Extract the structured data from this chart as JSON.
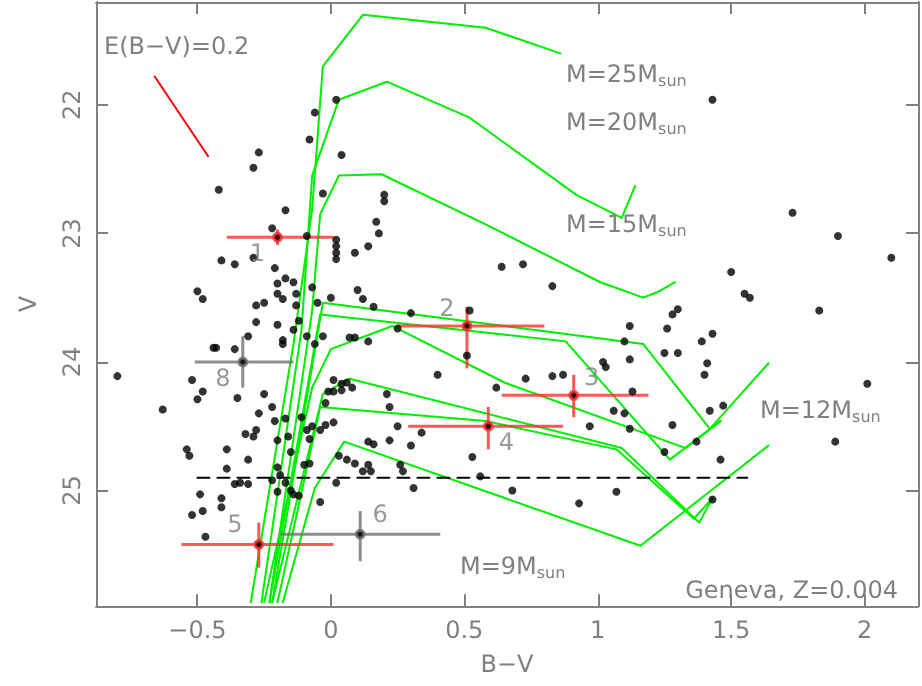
{
  "chart_data": {
    "type": "scatter",
    "xlabel": "B−V",
    "ylabel": "V",
    "xlim": [
      -0.88,
      2.2
    ],
    "ylim": [
      25.9,
      21.2
    ],
    "xticks": [
      {
        "value": -0.5,
        "label": "−0.5"
      },
      0,
      0.5,
      1,
      1.5,
      2
    ],
    "yticks": [
      22,
      23,
      24,
      25
    ],
    "grid": false,
    "marker": "circle",
    "series": [
      {
        "type": "scatter",
        "color": "#000000",
        "x": [
          0.02,
          -0.06,
          -0.08,
          0.04,
          -0.27,
          -0.29,
          -0.42,
          -0.03,
          0.2,
          0.2,
          0.17,
          0.18,
          -0.17,
          -0.22,
          -0.09,
          0.02,
          0.02,
          0.02,
          0.02,
          0.09,
          0.14,
          -0.41,
          -0.36,
          -0.29,
          -0.21,
          -0.17,
          -0.14,
          -0.5,
          -0.48,
          -0.2,
          -0.2,
          -0.07,
          0.1,
          0.12,
          0.16,
          0,
          -0.13,
          -0.28,
          -0.25,
          -0.18,
          -0.13,
          -0.05,
          -0.28,
          -0.2,
          -0.12,
          -0.31,
          -0.18,
          0.07,
          0.09,
          0.3,
          0.52,
          1.43,
          1.73,
          1.9,
          2.1,
          0.64,
          0.72,
          0.83,
          1.5,
          1.55,
          1.57,
          1.3,
          1.28,
          1.26,
          1.12,
          1.83,
          1.43,
          1.39,
          1.1,
          -0.8,
          -0.63,
          -0.52,
          -0.5,
          -0.48,
          -0.44,
          -0.43,
          -0.36,
          -0.35,
          -0.54,
          -0.53,
          -0.39,
          -0.39,
          -0.49,
          -0.52,
          -0.48,
          -0.47,
          -0.41,
          -0.41,
          -0.36,
          -0.34,
          -0.31,
          -0.32,
          -0.31,
          -0.25,
          -0.27,
          -0.28,
          -0.29,
          -0.22,
          -0.21,
          -0.2,
          -0.2,
          -0.19,
          -0.22,
          -0.2,
          -0.15,
          -0.14,
          -0.12,
          -0.17,
          -0.1,
          -0.08,
          -0.17,
          -0.16,
          -0.15,
          -0.11,
          -0.09,
          -0.08,
          -0.07,
          -0.04,
          -0.02,
          0.01,
          -0.02,
          -0.01,
          0.01,
          0.04,
          0.01,
          0.04,
          0.06,
          0.08,
          0.03,
          0.06,
          0.09,
          0.12,
          0.02,
          -0.04,
          0.14,
          0.16,
          0.14,
          0.15,
          0.21,
          0.22,
          0.22,
          0.25,
          0.26,
          0.27,
          0.3,
          0.31,
          0.4,
          0.34,
          -0.18,
          -0.14,
          -0.09,
          -0.06,
          -0.03,
          0.14,
          0.25,
          0.51,
          0.53,
          0.56,
          0.68,
          0.62,
          0.73,
          0.83,
          0.87,
          0.93,
          1.07,
          0.97,
          1.06,
          1.1,
          1.12,
          1.13,
          1.02,
          1.03,
          1.12,
          1.25,
          1.3,
          1.41,
          1.4,
          1.42,
          1.47,
          1.28,
          1.25,
          1.37,
          1.46,
          1.43,
          1.89,
          2.01
        ],
        "values": [
          21.96,
          22.06,
          22.27,
          22.39,
          22.37,
          22.49,
          22.66,
          22.69,
          22.7,
          22.75,
          22.91,
          23.0,
          22.82,
          22.96,
          23.02,
          23.05,
          23.1,
          23.15,
          23.2,
          23.15,
          23.1,
          23.21,
          23.24,
          23.19,
          23.27,
          23.35,
          23.38,
          23.45,
          23.51,
          23.39,
          23.47,
          23.42,
          23.44,
          23.51,
          23.57,
          23.5,
          23.47,
          23.56,
          23.54,
          23.51,
          23.56,
          23.54,
          23.69,
          23.71,
          23.68,
          23.8,
          23.83,
          23.81,
          23.81,
          23.62,
          23.6,
          21.96,
          22.84,
          23.02,
          23.19,
          23.26,
          23.24,
          23.41,
          23.3,
          23.47,
          23.5,
          23.59,
          23.63,
          23.74,
          23.72,
          23.6,
          23.78,
          23.84,
          23.84,
          24.11,
          24.37,
          24.14,
          24.29,
          24.23,
          23.89,
          23.89,
          23.9,
          24.28,
          24.68,
          24.73,
          24.68,
          24.83,
          25.03,
          25.19,
          25.16,
          25.36,
          25.06,
          25.13,
          24.95,
          24.94,
          24.95,
          24.56,
          24.76,
          24.25,
          24.4,
          24.53,
          24.58,
          24.35,
          24.46,
          24.61,
          24.82,
          24.88,
          24.92,
          25.01,
          25.0,
          25.03,
          25.04,
          24.94,
          24.8,
          24.79,
          24.44,
          24.58,
          24.7,
          24.43,
          24.53,
          24.6,
          24.5,
          24.53,
          24.49,
          24.47,
          24.32,
          24.23,
          24.23,
          24.22,
          24.14,
          24.17,
          24.16,
          24.2,
          24.73,
          24.76,
          24.79,
          24.85,
          24.94,
          25.09,
          24.62,
          24.64,
          24.8,
          24.85,
          24.25,
          24.35,
          24.61,
          24.5,
          24.8,
          24.85,
          24.65,
          24.98,
          24.1,
          24.55,
          23.86,
          23.75,
          23.8,
          23.86,
          23.8,
          23.84,
          23.74,
          23.95,
          24.74,
          24.89,
          25.0,
          24.2,
          24.13,
          24.11,
          24.1,
          25.1,
          25.01,
          24.5,
          24.38,
          24.4,
          24.52,
          24.23,
          24.0,
          24.04,
          23.98,
          23.93,
          23.93,
          24.01,
          24.1,
          24.38,
          24.34,
          24.49,
          24.7,
          24.62,
          24.76,
          25.07,
          24.62,
          24.17
        ]
      },
      {
        "type": "scatter",
        "color": "#ff3030",
        "x": [
          -0.2,
          0.51,
          0.91,
          0.59,
          -0.27
        ],
        "values": [
          23.03,
          23.72,
          24.26,
          24.5,
          25.42
        ],
        "xerrors": [
          [
            -0.39,
            0.01
          ],
          [
            0.25,
            0.8
          ],
          [
            0.64,
            1.19
          ],
          [
            0.29,
            0.87
          ],
          [
            -0.56,
            0.01
          ]
        ],
        "errors": [
          [
            22.97,
            23.09
          ],
          [
            23.57,
            24.05
          ],
          [
            24.1,
            24.43
          ],
          [
            24.35,
            24.68
          ],
          [
            25.25,
            25.6
          ]
        ]
      },
      {
        "type": "scatter",
        "color": "#707070",
        "x": [
          0.11,
          -0.33
        ],
        "values": [
          25.34,
          24.0
        ],
        "xerrors": [
          [
            -0.19,
            0.41
          ],
          [
            -0.51,
            -0.14
          ]
        ],
        "errors": [
          [
            25.16,
            25.55
          ],
          [
            23.8,
            24.2
          ]
        ]
      },
      {
        "type": "line",
        "marker": "none",
        "color": "#00ee00",
        "x": [
          -0.3,
          -0.14,
          -0.07,
          -0.03,
          0.12,
          0.58,
          0.86
        ],
        "values": [
          25.87,
          23.86,
          22.81,
          21.7,
          21.3,
          21.4,
          21.6
        ]
      },
      {
        "type": "line",
        "marker": "none",
        "color": "#00ee00",
        "x": [
          -0.26,
          -0.11,
          -0.07,
          0.03,
          0.21,
          0.52,
          0.92,
          1.09,
          1.11,
          1.14
        ],
        "values": [
          25.87,
          23.75,
          22.55,
          21.96,
          21.82,
          22.1,
          22.7,
          22.88,
          22.78,
          22.63
        ]
      },
      {
        "type": "line",
        "marker": "none",
        "color": "#00ee00",
        "x": [
          -0.23,
          -0.07,
          -0.04,
          0.03,
          0.19,
          0.58,
          1.01,
          1.17,
          1.22,
          1.29
        ],
        "values": [
          25.87,
          23.6,
          22.85,
          22.55,
          22.54,
          22.93,
          23.38,
          23.5,
          23.46,
          23.38
        ]
      },
      {
        "type": "line",
        "marker": "none",
        "color": "#00ee00",
        "x": [
          -0.22,
          -0.03,
          1.17,
          1.42,
          1.64
        ],
        "values": [
          25.87,
          23.54,
          23.86,
          24.52,
          24.01
        ]
      },
      {
        "type": "line",
        "marker": "none",
        "color": "#00ee00",
        "x": [
          -0.23,
          -0.04,
          0.88,
          1.27,
          1.46
        ],
        "values": [
          25.87,
          23.63,
          23.84,
          24.76,
          24.46
        ]
      },
      {
        "type": "line",
        "marker": "none",
        "color": "#00ee00",
        "x": [
          -0.25,
          -0.07,
          0,
          0.23,
          0.65,
          1.33,
          1.46
        ],
        "values": [
          25.87,
          24.2,
          23.9,
          23.72,
          24.16,
          24.67,
          24.46
        ]
      },
      {
        "type": "line",
        "marker": "none",
        "color": "#00ee00",
        "x": [
          -0.22,
          -0.03,
          0.07,
          1.09,
          1.38,
          1.43
        ],
        "values": [
          25.87,
          24.25,
          24.13,
          24.67,
          25.25,
          25.06
        ]
      },
      {
        "type": "line",
        "marker": "none",
        "color": "#00ee00",
        "x": [
          -0.2,
          -0.04,
          0.58,
          1.07,
          1.36,
          1.43
        ],
        "values": [
          25.87,
          24.35,
          24.46,
          24.68,
          25.22,
          25.06
        ]
      },
      {
        "type": "line",
        "marker": "none",
        "color": "#00ee00",
        "x": [
          -0.18,
          -0.06,
          0.05,
          1.16,
          1.64
        ],
        "values": [
          25.87,
          24.98,
          24.62,
          25.43,
          24.65
        ]
      },
      {
        "type": "line",
        "marker": "none",
        "color": "#ff0000",
        "x": [
          -0.66,
          -0.46
        ],
        "values": [
          21.78,
          22.4
        ]
      },
      {
        "type": "line",
        "marker": "none",
        "line_style": "dashed",
        "color": "#000000",
        "x": [
          -0.5,
          1.56
        ],
        "values": [
          24.9,
          24.9
        ]
      }
    ],
    "annotations": [
      "E(B−V)=0.2",
      "M=25M$_{sun}$",
      "M=20M$_{sun}$",
      "M=15M$_{sun}$",
      "M=12M$_{sun}$",
      "M=9M$_{sun}$",
      "Geneva, Z=0.004",
      {
        "text": "1",
        "x": -0.2,
        "y": 23.03
      },
      {
        "text": "2",
        "x": 0.51,
        "y": 23.72
      },
      {
        "text": "3",
        "x": 0.91,
        "y": 24.26
      },
      {
        "text": "4",
        "x": 0.59,
        "y": 24.5
      },
      {
        "text": "5",
        "x": -0.27,
        "y": 25.42
      },
      {
        "text": "6",
        "x": 0.11,
        "y": 25.34
      },
      {
        "text": "8",
        "x": -0.33,
        "y": 24.0
      }
    ]
  }
}
